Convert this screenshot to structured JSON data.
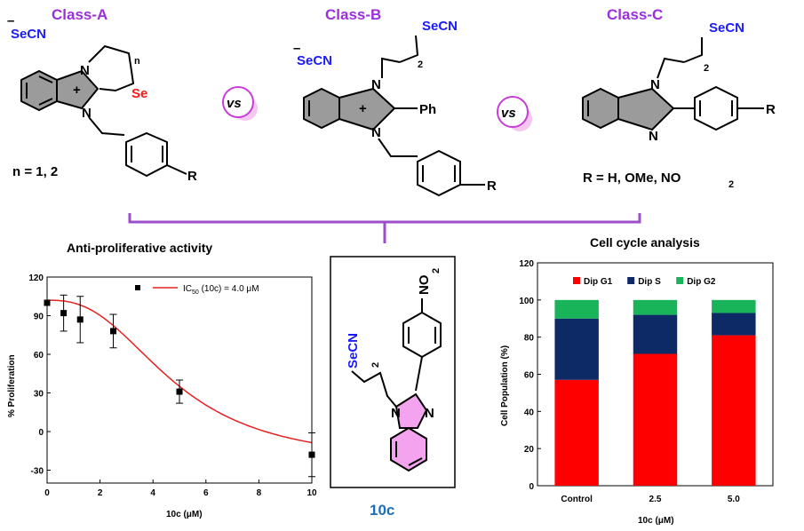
{
  "classes": {
    "a": {
      "title": "Class-A",
      "anion": "SeCN",
      "ring_label": "Se",
      "n_sub": "n",
      "n_values": "n = 1, 2"
    },
    "b": {
      "title": "Class-B",
      "anion": "SeCN",
      "top_label": "SeCN",
      "subscript": "2",
      "ph": "Ph"
    },
    "c": {
      "title": "Class-C",
      "top_label": "SeCN",
      "subscript": "2",
      "r_values": "R = H, OMe, NO",
      "r_values_sub": "2"
    },
    "atoms": {
      "n": "N",
      "r": "R",
      "plus": "+",
      "minus": "–"
    },
    "vs_label": "vs"
  },
  "compound": {
    "name": "10c",
    "nitro": "NO",
    "nitro_sub": "2",
    "secn": "SeCN",
    "sub": "2"
  },
  "chart_data": [
    {
      "type": "scatter",
      "title": "Anti-proliferative activity",
      "xlabel": "10c (μM)",
      "ylabel": "% Proliferation",
      "xlim": [
        0,
        10
      ],
      "ylim": [
        -40,
        120
      ],
      "xticks": [
        0,
        2,
        4,
        6,
        8,
        10
      ],
      "yticks": [
        -30,
        0,
        30,
        60,
        90,
        120
      ],
      "legend_text": "IC",
      "legend_sub": "50",
      "legend_rest": " (10c) = 4.0 μM",
      "points": [
        {
          "x": 0,
          "y": 100,
          "err": 0
        },
        {
          "x": 0.625,
          "y": 92,
          "err": 14
        },
        {
          "x": 1.25,
          "y": 87,
          "err": 18
        },
        {
          "x": 2.5,
          "y": 78,
          "err": 13
        },
        {
          "x": 5,
          "y": 31,
          "err": 9
        },
        {
          "x": 10,
          "y": -18,
          "err": 17
        }
      ],
      "fit_line_color": "#e62020"
    },
    {
      "type": "bar",
      "title": "Cell cycle analysis",
      "xlabel": "10c (μM)",
      "ylabel": "Cell Population (%)",
      "ylim": [
        0,
        120
      ],
      "yticks": [
        0,
        20,
        40,
        60,
        80,
        100,
        120
      ],
      "categories": [
        "Control",
        "2.5",
        "5.0"
      ],
      "stacked": true,
      "legend_position": "top",
      "series": [
        {
          "name": "Dip G1",
          "color": "#ff0000",
          "values": [
            57,
            71,
            81
          ]
        },
        {
          "name": "Dip S",
          "color": "#0d2a66",
          "values": [
            33,
            21,
            12
          ]
        },
        {
          "name": "Dip G2",
          "color": "#19b35a",
          "values": [
            10,
            8,
            7
          ]
        }
      ]
    }
  ]
}
